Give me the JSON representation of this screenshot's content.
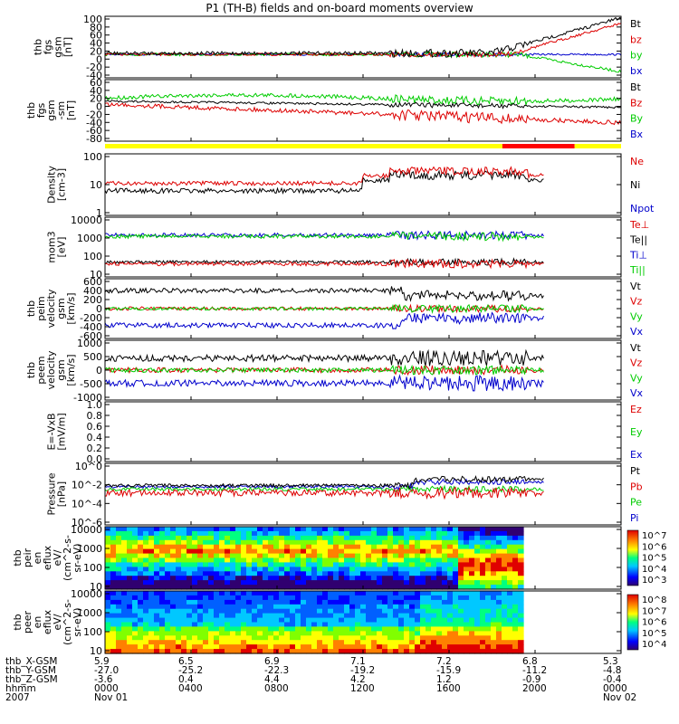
{
  "title": "P1 (TH-B) fields and on-board moments overview",
  "chart_data": [
    {
      "type": "line",
      "panel": "fgs_gsm",
      "ylabel": [
        "thb",
        "fgs",
        "gsm",
        "[nT]"
      ],
      "yticks": [
        "100",
        "80",
        "60",
        "40",
        "20",
        "0",
        "-20",
        "-40"
      ],
      "legend": [
        {
          "name": "Bt",
          "color": "#000000"
        },
        {
          "name": "bz",
          "color": "#dd0000"
        },
        {
          "name": "by",
          "color": "#00cc00"
        },
        {
          "name": "bx",
          "color": "#0000cc"
        }
      ]
    },
    {
      "type": "line",
      "panel": "fgs_gsm_sm",
      "ylabel": [
        "thb",
        "fgs",
        "gsm",
        "-sm",
        "[nT]"
      ],
      "yticks": [
        "60",
        "40",
        "20",
        "0",
        "-20",
        "-40",
        "-60",
        "-80"
      ],
      "legend": [
        {
          "name": "Bt",
          "color": "#000000"
        },
        {
          "name": "Bz",
          "color": "#dd0000"
        },
        {
          "name": "By",
          "color": "#00cc00"
        },
        {
          "name": "Bx",
          "color": "#0000cc"
        }
      ]
    },
    {
      "type": "line",
      "panel": "density",
      "ylabel": [
        "Density",
        "[cm-3]"
      ],
      "scale": "log",
      "yticks": [
        "100",
        "10",
        "1"
      ],
      "legend": [
        {
          "name": "Ne",
          "color": "#dd0000"
        },
        {
          "name": "Ni",
          "color": "#000000"
        },
        {
          "name": "Npot",
          "color": "#0000cc"
        }
      ]
    },
    {
      "type": "line",
      "panel": "temperature",
      "ylabel": [
        "mom3",
        "[eV]"
      ],
      "scale": "log",
      "yticks": [
        "10000",
        "1000",
        "100",
        "10"
      ],
      "legend": [
        {
          "name": "Te⊥",
          "color": "#dd0000"
        },
        {
          "name": "Te||",
          "color": "#000000"
        },
        {
          "name": "Ti⊥",
          "color": "#0000cc"
        },
        {
          "name": "Ti||",
          "color": "#00cc00"
        }
      ]
    },
    {
      "type": "line",
      "panel": "peim_velocity",
      "ylabel": [
        "thb",
        "peim",
        "velocity",
        "gsm",
        "[km/s]"
      ],
      "yticks": [
        "600",
        "400",
        "200",
        "0",
        "-200",
        "-400",
        "-600"
      ],
      "legend": [
        {
          "name": "Vt",
          "color": "#000000"
        },
        {
          "name": "Vz",
          "color": "#dd0000"
        },
        {
          "name": "Vy",
          "color": "#00cc00"
        },
        {
          "name": "Vx",
          "color": "#0000cc"
        }
      ]
    },
    {
      "type": "line",
      "panel": "peem_velocity",
      "ylabel": [
        "thb",
        "peem",
        "velocity",
        "gsm",
        "[km/s]"
      ],
      "yticks": [
        "1000",
        "500",
        "0",
        "-500",
        "-1000"
      ],
      "legend": [
        {
          "name": "Vt",
          "color": "#000000"
        },
        {
          "name": "Vz",
          "color": "#dd0000"
        },
        {
          "name": "Vy",
          "color": "#00cc00"
        },
        {
          "name": "Vx",
          "color": "#0000cc"
        }
      ]
    },
    {
      "type": "line",
      "panel": "efield",
      "ylabel": [
        "E=-VxB",
        "[mV/m]"
      ],
      "yticks": [
        "1.0",
        "0.8",
        "0.6",
        "0.4",
        "0.2",
        "0.0"
      ],
      "legend": [
        {
          "name": "Ez",
          "color": "#dd0000"
        },
        {
          "name": "Ey",
          "color": "#00cc00"
        },
        {
          "name": "Ex",
          "color": "#0000cc"
        }
      ]
    },
    {
      "type": "line",
      "panel": "pressure",
      "ylabel": [
        "Pressure",
        "[nPa]"
      ],
      "scale": "log",
      "yticks": [
        "10^0",
        "10^-2",
        "10^-4",
        "10^-6"
      ],
      "legend": [
        {
          "name": "Pt",
          "color": "#000000"
        },
        {
          "name": "Pb",
          "color": "#dd0000"
        },
        {
          "name": "Pe",
          "color": "#00cc00"
        },
        {
          "name": "Pi",
          "color": "#0000cc"
        }
      ]
    },
    {
      "type": "heatmap",
      "panel": "peir_spectrogram",
      "ylabel": [
        "thb",
        "peir",
        "en",
        "eflux",
        "eV/",
        "(cm^2-s-",
        "sr-eV)"
      ],
      "yticks": [
        "10000",
        "1000",
        "100",
        "10"
      ],
      "colorbar_ticks": [
        "10^7",
        "10^6",
        "10^5",
        "10^4",
        "10^3"
      ]
    },
    {
      "type": "heatmap",
      "panel": "peer_spectrogram",
      "ylabel": [
        "thb",
        "peer",
        "en",
        "eflux",
        "eV/",
        "(cm^2-s-",
        "sr-eV)"
      ],
      "yticks": [
        "10000",
        "1000",
        "100",
        "10"
      ],
      "colorbar_ticks": [
        "10^8",
        "10^7",
        "10^6",
        "10^5",
        "10^4"
      ]
    }
  ],
  "x_axis": {
    "rows": [
      {
        "label": "thb_X-GSM",
        "values": [
          "5.9",
          "6.5",
          "6.9",
          "7.1",
          "7.2",
          "6.8",
          "5.3"
        ]
      },
      {
        "label": "thb_Y-GSM",
        "values": [
          "-27.0",
          "-25.2",
          "-22.3",
          "-19.2",
          "-15.9",
          "-11.2",
          "-4.8"
        ]
      },
      {
        "label": "thb_Z-GSM",
        "values": [
          "-3.6",
          "0.4",
          "4.4",
          "4.2",
          "1.2",
          "-0.9",
          "-0.4"
        ]
      },
      {
        "label": "hhmm",
        "values": [
          "0000",
          "0400",
          "0800",
          "1200",
          "1600",
          "2000",
          "0000"
        ]
      },
      {
        "label": "2007",
        "values": [
          "Nov 01",
          "",
          "",
          "",
          "",
          "",
          "Nov 02"
        ]
      }
    ]
  }
}
